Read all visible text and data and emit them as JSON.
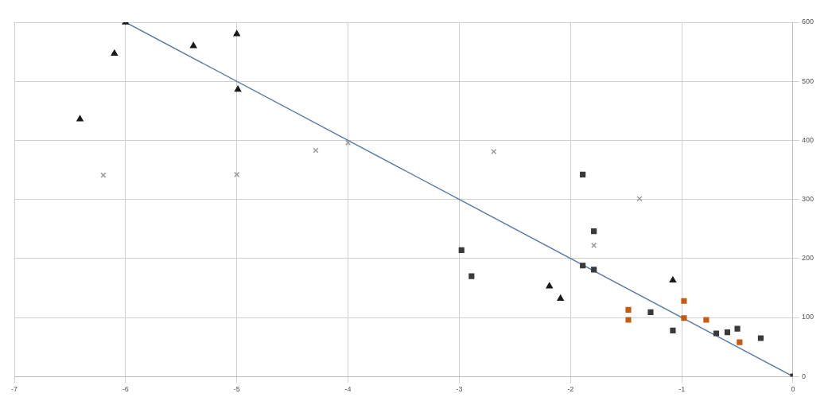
{
  "chart_data": {
    "type": "scatter",
    "xlim": [
      -7,
      0
    ],
    "xticks": [
      -7,
      -6,
      -5,
      -4,
      -3,
      -2,
      -1,
      0
    ],
    "ylim": [
      0,
      600
    ],
    "yticks": [
      0,
      100,
      200,
      300,
      400,
      500,
      600
    ],
    "grid": true,
    "legend": false,
    "series": [
      {
        "marker": "square",
        "color": "#c55a11",
        "x": [
          -1.48,
          -1.48,
          -0.98,
          -0.98,
          -0.78,
          -0.48
        ],
        "values": [
          96,
          113,
          128,
          99,
          96,
          58
        ]
      },
      {
        "marker": "square",
        "color": "#3a3a3a",
        "x": [
          -1.89,
          -1.79,
          -1.89,
          -1.79,
          -2.98,
          -2.89,
          -1.28,
          -1.08,
          -0.69,
          -0.59,
          -0.5,
          -0.29,
          0
        ],
        "values": [
          342,
          246,
          188,
          181,
          214,
          170,
          109,
          78,
          73,
          75,
          81,
          65,
          0
        ]
      },
      {
        "marker": "triangle",
        "color": "#1a1a1a",
        "x": [
          -6.0,
          -6.1,
          -6.41,
          -5.39,
          -5.0,
          -4.99,
          -1.08,
          -2.19,
          -2.09
        ],
        "values": [
          600,
          547,
          436,
          560,
          580,
          486,
          163,
          153,
          132
        ]
      },
      {
        "marker": "cross",
        "color": "#9a9a9a",
        "x": [
          -6.2,
          -5.0,
          -4.29,
          -4.0,
          -2.69,
          -1.38,
          -1.79
        ],
        "values": [
          341,
          342,
          383,
          396,
          381,
          301,
          222
        ]
      },
      {
        "type": "line",
        "marker": "none",
        "color": "#5b7fa8",
        "x": [
          -6,
          0
        ],
        "values": [
          600,
          0
        ]
      }
    ]
  }
}
